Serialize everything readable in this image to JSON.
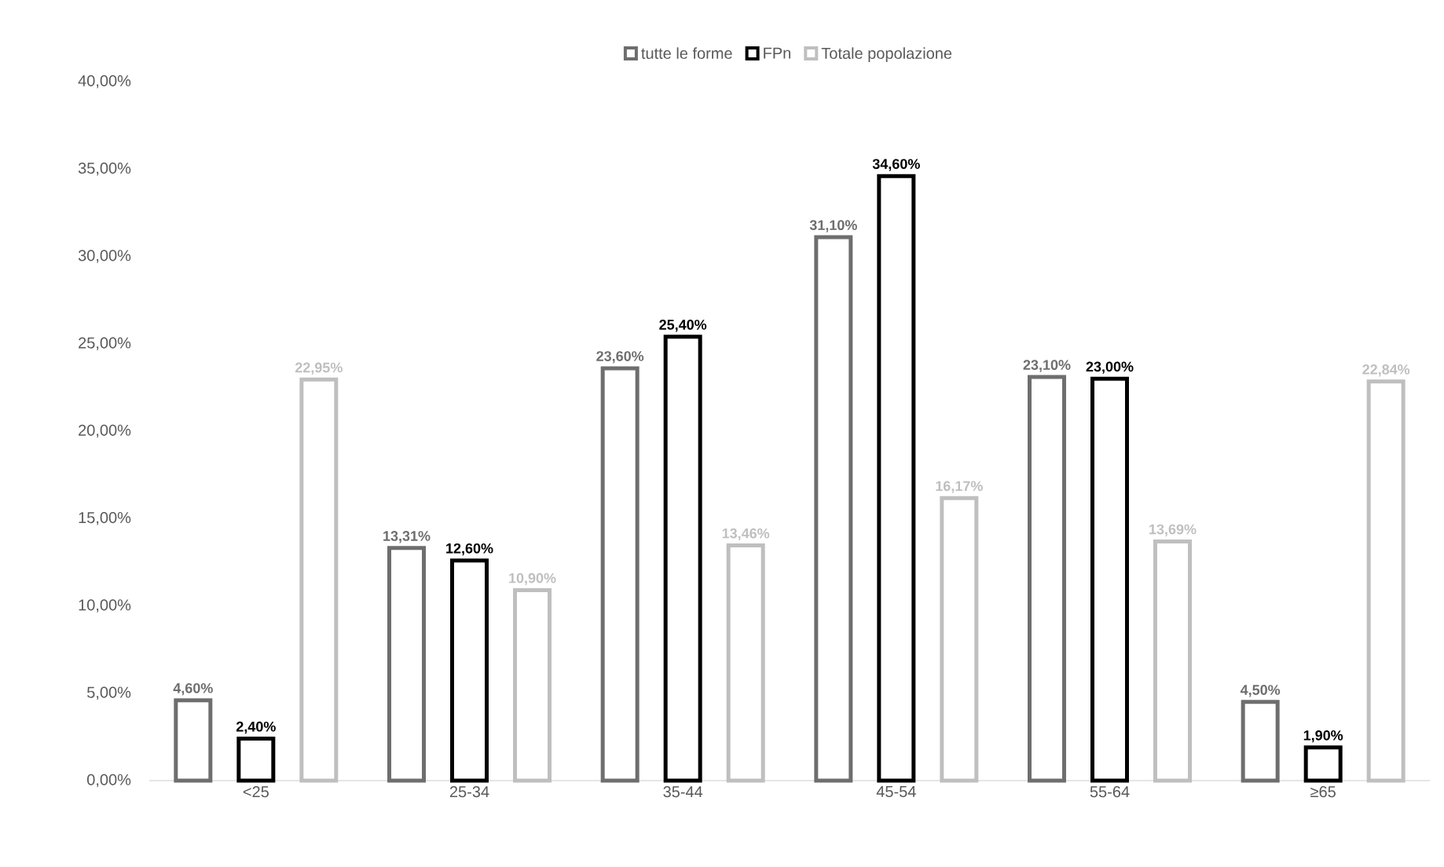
{
  "chart_data": {
    "type": "bar",
    "categories": [
      "<25",
      "25-34",
      "35-44",
      "45-54",
      "55-64",
      "≥65"
    ],
    "series": [
      {
        "name": "tutte le forme",
        "color": "#6e6e6e",
        "values": [
          4.6,
          13.31,
          23.6,
          31.1,
          23.1,
          4.5
        ],
        "value_labels": [
          "4,60%",
          "13,31%",
          "23,60%",
          "31,10%",
          "23,10%",
          "4,50%"
        ]
      },
      {
        "name": "FPn",
        "color": "#000000",
        "values": [
          2.4,
          12.6,
          25.4,
          34.6,
          23.0,
          1.9
        ],
        "value_labels": [
          "2,40%",
          "12,60%",
          "25,40%",
          "34,60%",
          "23,00%",
          "1,90%"
        ]
      },
      {
        "name": "Totale popolazione",
        "color": "#bfbfbf",
        "values": [
          22.95,
          10.9,
          13.46,
          16.17,
          13.69,
          22.84
        ],
        "value_labels": [
          "22,95%",
          "10,90%",
          "13,46%",
          "16,17%",
          "13,69%",
          "22,84%"
        ]
      }
    ],
    "ylim": [
      0,
      40
    ],
    "yticks": [
      {
        "value": 0,
        "label": "0,00%"
      },
      {
        "value": 5,
        "label": "5,00%"
      },
      {
        "value": 10,
        "label": "10,00%"
      },
      {
        "value": 15,
        "label": "15,00%"
      },
      {
        "value": 20,
        "label": "20,00%"
      },
      {
        "value": 25,
        "label": "25,00%"
      },
      {
        "value": 30,
        "label": "30,00%"
      },
      {
        "value": 35,
        "label": "35,00%"
      },
      {
        "value": 40,
        "label": "40,00%"
      }
    ],
    "legend": "top"
  }
}
